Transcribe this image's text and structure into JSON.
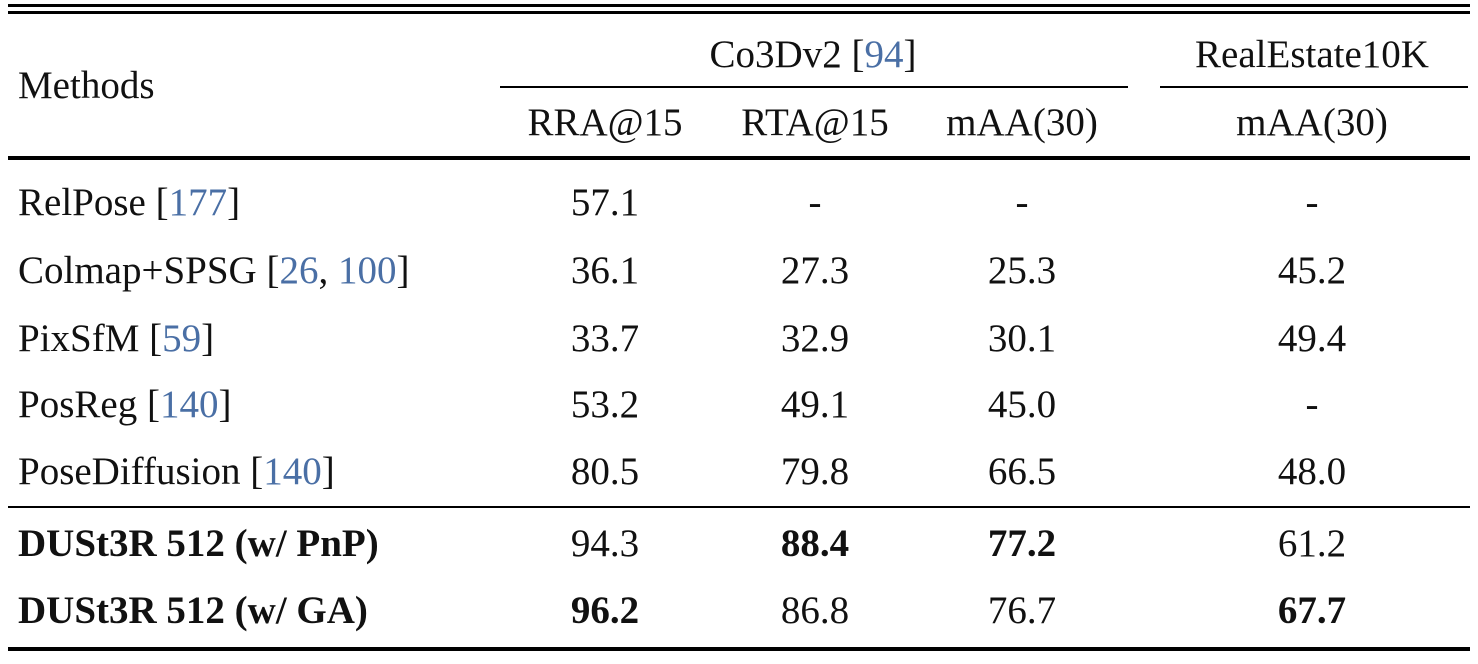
{
  "header": {
    "methods": "Methods",
    "group1": {
      "name": "Co3Dv2",
      "cite": "94"
    },
    "group2": {
      "name": "RealEstate10K"
    },
    "cols": [
      "RRA@15",
      "RTA@15",
      "mAA(30)",
      "mAA(30)"
    ]
  },
  "rows": [
    {
      "name": "RelPose",
      "cites": [
        "177"
      ],
      "bold": false,
      "vals": [
        "57.1",
        "-",
        "-",
        "-"
      ],
      "bold_vals": [
        false,
        false,
        false,
        false
      ]
    },
    {
      "name": "Colmap+SPSG",
      "cites": [
        "26",
        "100"
      ],
      "bold": false,
      "vals": [
        "36.1",
        "27.3",
        "25.3",
        "45.2"
      ],
      "bold_vals": [
        false,
        false,
        false,
        false
      ]
    },
    {
      "name": "PixSfM",
      "cites": [
        "59"
      ],
      "bold": false,
      "vals": [
        "33.7",
        "32.9",
        "30.1",
        "49.4"
      ],
      "bold_vals": [
        false,
        false,
        false,
        false
      ]
    },
    {
      "name": "PosReg",
      "cites": [
        "140"
      ],
      "bold": false,
      "vals": [
        "53.2",
        "49.1",
        "45.0",
        "-"
      ],
      "bold_vals": [
        false,
        false,
        false,
        false
      ]
    },
    {
      "name": "PoseDiffusion",
      "cites": [
        "140"
      ],
      "bold": false,
      "vals": [
        "80.5",
        "79.8",
        "66.5",
        "48.0"
      ],
      "bold_vals": [
        false,
        false,
        false,
        false
      ]
    },
    {
      "name": "DUSt3R 512 (w/ PnP)",
      "cites": [],
      "bold": true,
      "vals": [
        "94.3",
        "88.4",
        "77.2",
        "61.2"
      ],
      "bold_vals": [
        false,
        true,
        true,
        false
      ]
    },
    {
      "name": "DUSt3R 512 (w/ GA)",
      "cites": [],
      "bold": true,
      "vals": [
        "96.2",
        "86.8",
        "76.7",
        "67.7"
      ],
      "bold_vals": [
        true,
        false,
        false,
        true
      ]
    }
  ]
}
